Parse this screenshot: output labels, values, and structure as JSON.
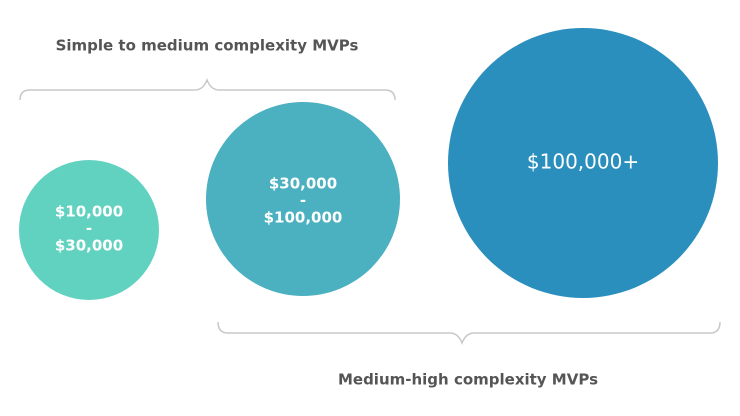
{
  "groups": [
    {
      "label": "Simple to medium complexity MVPs"
    },
    {
      "label": "Medium-high complexity MVPs"
    }
  ],
  "nodes": [
    {
      "lines": [
        "$10,000",
        "-",
        "$30,000"
      ]
    },
    {
      "lines": [
        "$30,000",
        "-",
        "$100,000"
      ]
    },
    {
      "lines": [
        "$100,000+"
      ]
    }
  ]
}
